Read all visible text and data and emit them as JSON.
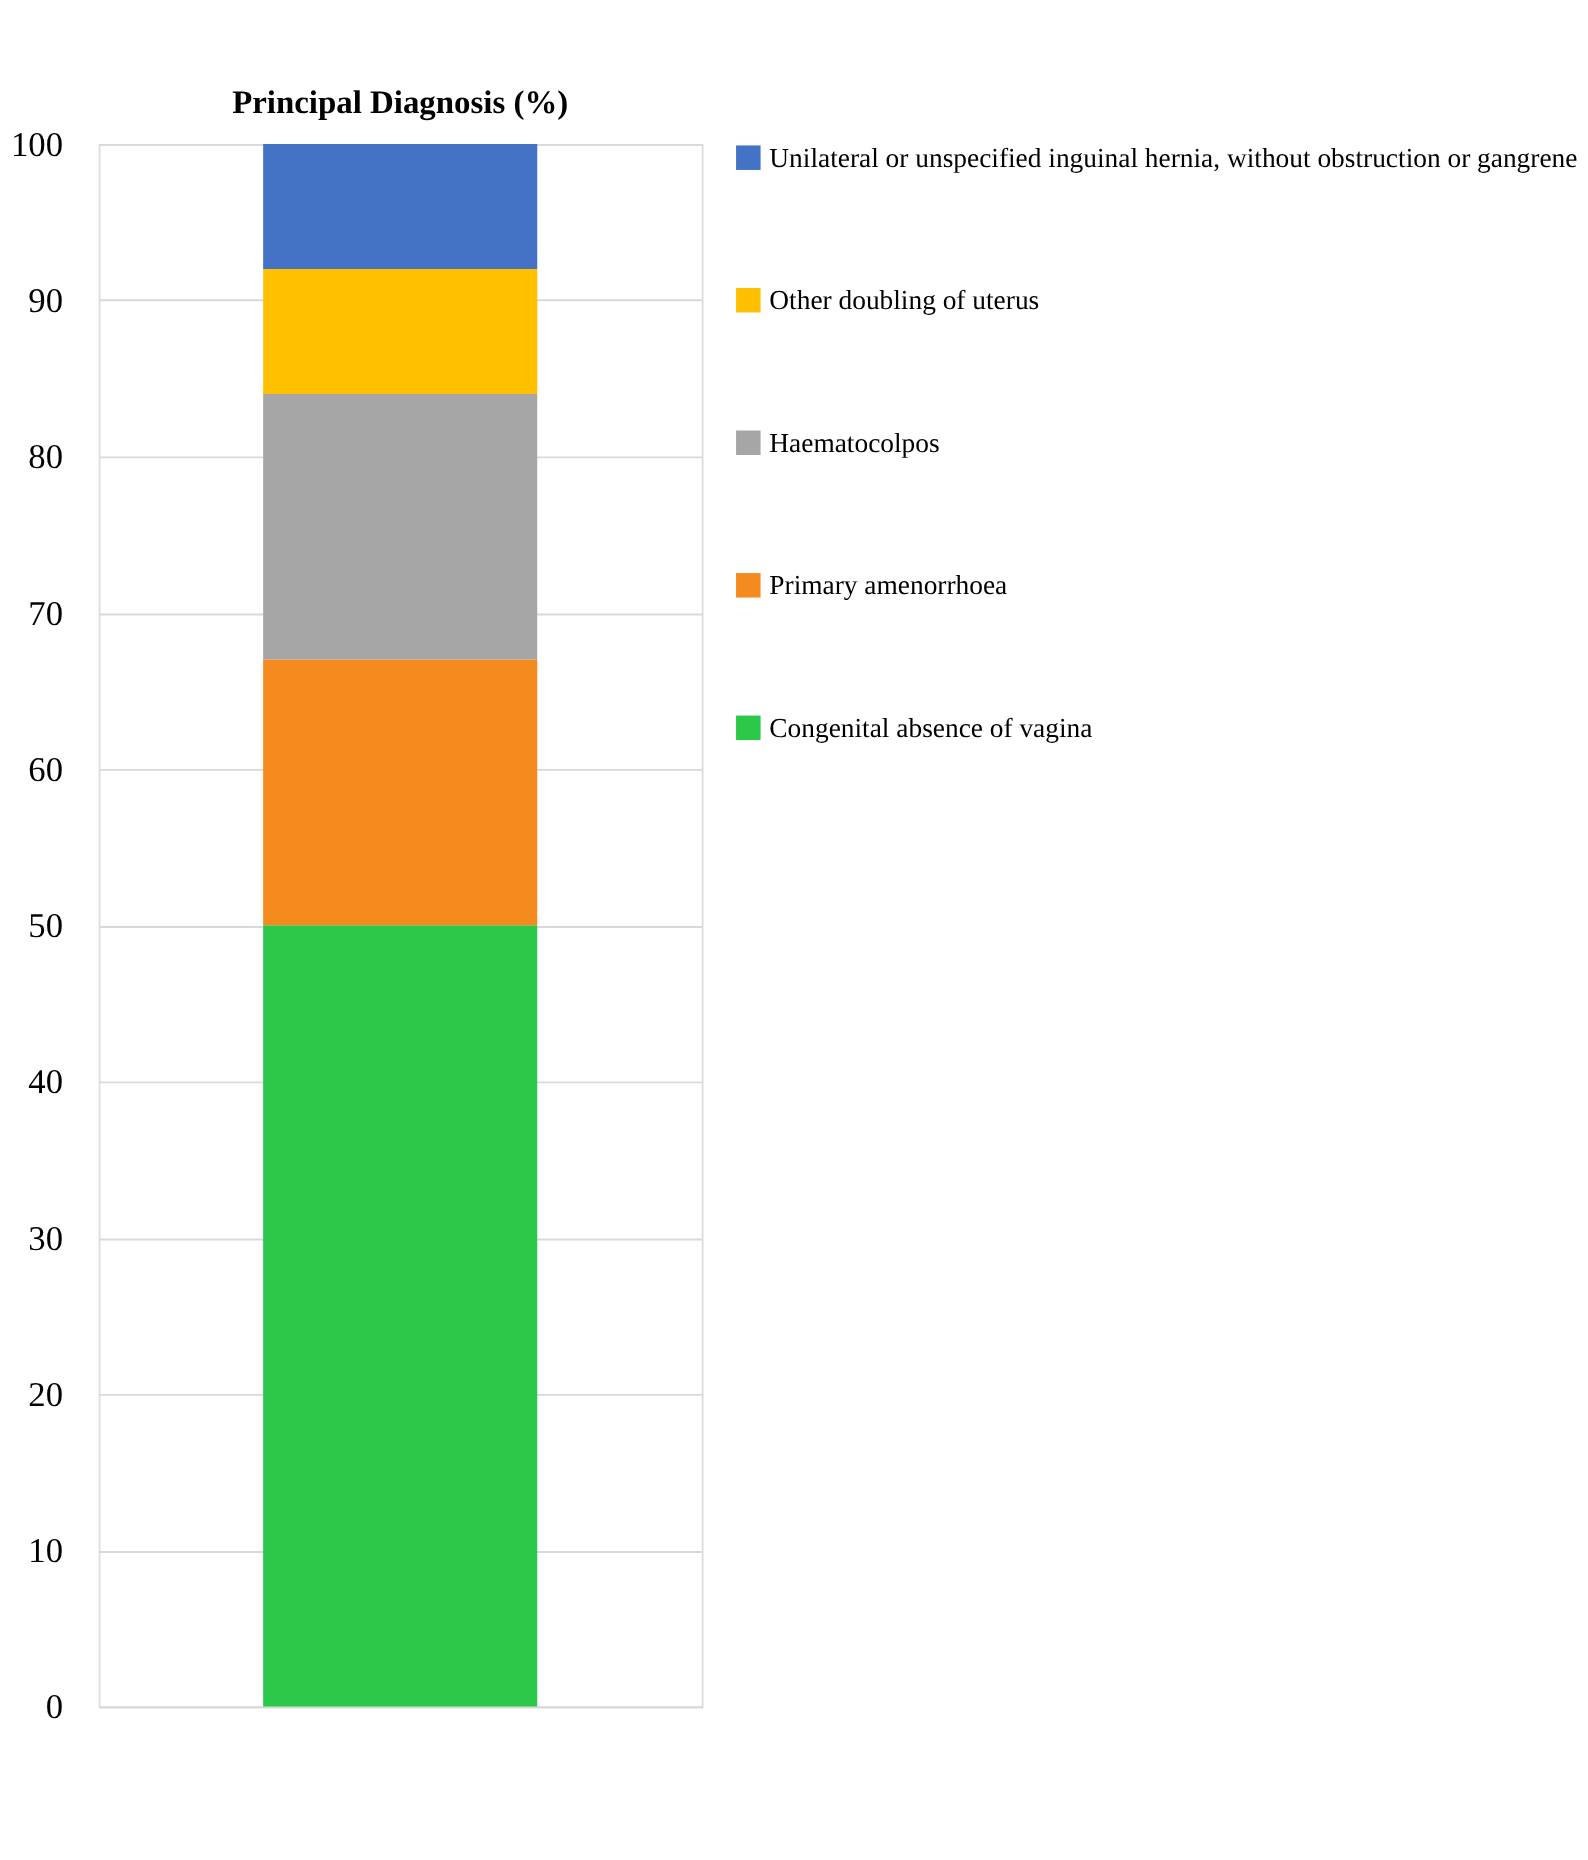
{
  "chart_data": {
    "type": "bar",
    "title": "Principal Diagnosis (%)",
    "stacked": true,
    "categories": [
      null
    ],
    "series": [
      {
        "name": "Congenital absence of vagina",
        "color": "#2cc84a",
        "values": [
          50
        ]
      },
      {
        "name": "Primary amenorrhoea",
        "color": "#f58a1f",
        "values": [
          17
        ]
      },
      {
        "name": "Haematocolpos",
        "color": "#a6a6a6",
        "values": [
          17
        ]
      },
      {
        "name": "Other doubling of uterus",
        "color": "#ffc000",
        "values": [
          8
        ]
      },
      {
        "name": "Unilateral or unspecified inguinal hernia, without obstruction or gangrene",
        "color": "#4472c4",
        "values": [
          8
        ]
      }
    ],
    "ylim": [
      0,
      100
    ],
    "yticks": [
      0,
      10,
      20,
      30,
      40,
      50,
      60,
      70,
      80,
      90,
      100
    ],
    "grid": "y",
    "legend": "right"
  }
}
